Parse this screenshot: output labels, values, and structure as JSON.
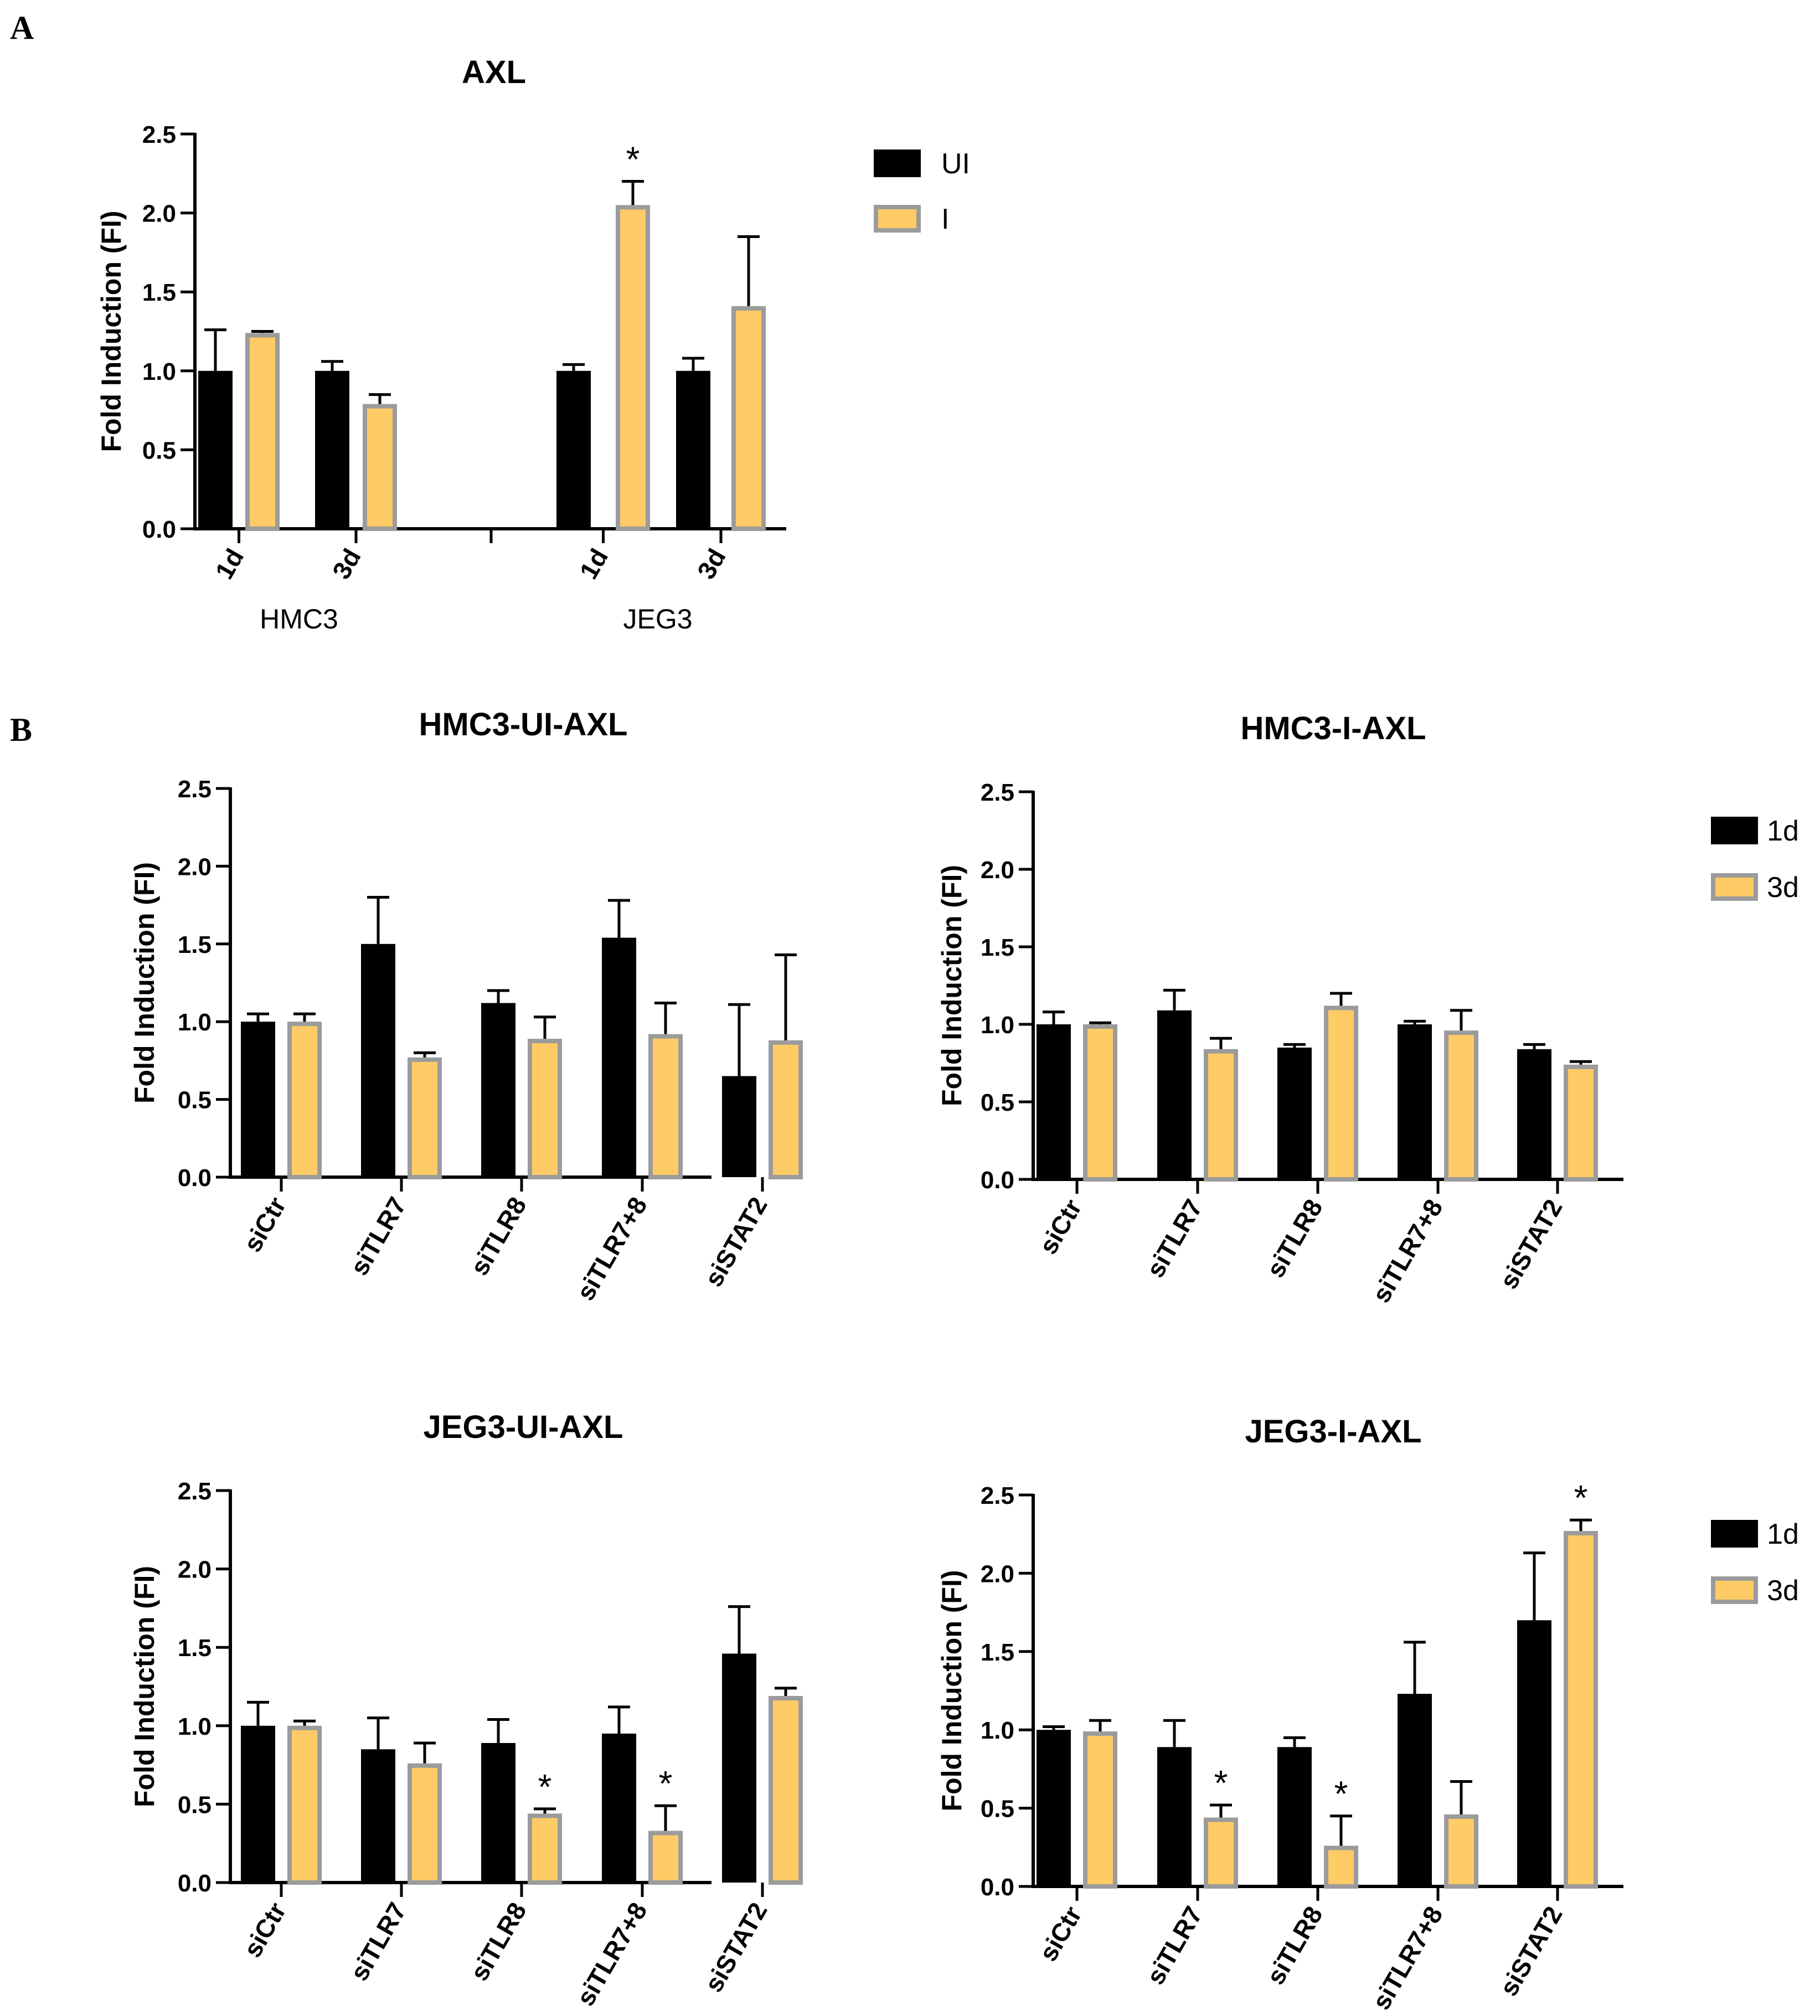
{
  "panels": {
    "a": "A",
    "b": "B"
  },
  "colors": {
    "ui": "#000000",
    "i": "#FFCB66",
    "i_border": "#9B9B9B",
    "axis": "#000000"
  },
  "chart_data": [
    {
      "id": "axl",
      "type": "bar",
      "title": "AXL",
      "ylabel": "Fold Induction (FI)",
      "ylim": [
        0,
        2.5
      ],
      "yticks": [
        "0.0",
        "0.5",
        "1.0",
        "1.5",
        "2.0",
        "2.5"
      ],
      "groups": [
        "HMC3",
        "JEG3"
      ],
      "categories": [
        "1d",
        "3d",
        "1d",
        "3d"
      ],
      "legend": [
        "UI",
        "I"
      ],
      "series": [
        {
          "name": "UI",
          "values": [
            1.0,
            1.0,
            1.0,
            1.0
          ],
          "errors": [
            0.26,
            0.06,
            0.04,
            0.08
          ]
        },
        {
          "name": "I",
          "values": [
            1.24,
            0.79,
            2.05,
            1.41
          ],
          "errors": [
            0.01,
            0.06,
            0.15,
            0.44
          ]
        }
      ],
      "annotations": [
        {
          "text": "*",
          "category": 2,
          "series": 1
        }
      ]
    },
    {
      "id": "hmc3_ui",
      "type": "bar",
      "title": "HMC3-UI-AXL",
      "ylabel": "Fold Induction (FI)",
      "ylim": [
        0,
        2.5
      ],
      "yticks": [
        "0.0",
        "0.5",
        "1.0",
        "1.5",
        "2.0",
        "2.5"
      ],
      "categories": [
        "siCtr",
        "siTLR7",
        "siTLR8",
        "siTLR7+8",
        "siSTAT2"
      ],
      "series": [
        {
          "name": "1d",
          "values": [
            1.0,
            1.5,
            1.12,
            1.54,
            0.65
          ],
          "errors": [
            0.05,
            0.3,
            0.08,
            0.24,
            0.46
          ]
        },
        {
          "name": "3d",
          "values": [
            1.0,
            0.77,
            0.89,
            0.92,
            0.88
          ],
          "errors": [
            0.05,
            0.03,
            0.14,
            0.2,
            0.55
          ]
        }
      ],
      "annotations": []
    },
    {
      "id": "hmc3_i",
      "type": "bar",
      "title": "HMC3-I-AXL",
      "ylabel": "Fold Induction (FI)",
      "ylim": [
        0,
        2.5
      ],
      "yticks": [
        "0.0",
        "0.5",
        "1.0",
        "1.5",
        "2.0",
        "2.5"
      ],
      "categories": [
        "siCtr",
        "siTLR7",
        "siTLR8",
        "siTLR7+8",
        "siSTAT2"
      ],
      "legend": [
        "1d",
        "3d"
      ],
      "series": [
        {
          "name": "1d",
          "values": [
            1.0,
            1.09,
            0.85,
            1.0,
            0.84
          ],
          "errors": [
            0.08,
            0.13,
            0.02,
            0.02,
            0.03
          ]
        },
        {
          "name": "3d",
          "values": [
            1.0,
            0.84,
            1.12,
            0.96,
            0.74
          ],
          "errors": [
            0.01,
            0.07,
            0.08,
            0.13,
            0.02
          ]
        }
      ],
      "annotations": []
    },
    {
      "id": "jeg3_ui",
      "type": "bar",
      "title": "JEG3-UI-AXL",
      "ylabel": "Fold Induction (FI)",
      "ylim": [
        0,
        2.5
      ],
      "yticks": [
        "0.0",
        "0.5",
        "1.0",
        "1.5",
        "2.0",
        "2.5"
      ],
      "categories": [
        "siCtr",
        "siTLR7",
        "siTLR8",
        "siTLR7+8",
        "siSTAT2"
      ],
      "series": [
        {
          "name": "1d",
          "values": [
            1.0,
            0.85,
            0.89,
            0.95,
            1.46
          ],
          "errors": [
            0.15,
            0.2,
            0.15,
            0.17,
            0.3
          ]
        },
        {
          "name": "3d",
          "values": [
            1.0,
            0.76,
            0.44,
            0.33,
            1.19
          ],
          "errors": [
            0.03,
            0.13,
            0.03,
            0.16,
            0.05
          ]
        }
      ],
      "annotations": [
        {
          "text": "*",
          "category": 2,
          "series": 1
        },
        {
          "text": "*",
          "category": 3,
          "series": 1
        }
      ]
    },
    {
      "id": "jeg3_i",
      "type": "bar",
      "title": "JEG3-I-AXL",
      "ylabel": "Fold Induction (FI)",
      "ylim": [
        0,
        2.5
      ],
      "yticks": [
        "0.0",
        "0.5",
        "1.0",
        "1.5",
        "2.0",
        "2.5"
      ],
      "categories": [
        "siCtr",
        "siTLR7",
        "siTLR8",
        "siTLR7+8",
        "siSTAT2"
      ],
      "legend": [
        "1d",
        "3d"
      ],
      "series": [
        {
          "name": "1d",
          "values": [
            1.0,
            0.89,
            0.89,
            1.23,
            1.7
          ],
          "errors": [
            0.02,
            0.17,
            0.06,
            0.33,
            0.43
          ]
        },
        {
          "name": "3d",
          "values": [
            0.99,
            0.44,
            0.26,
            0.46,
            2.27
          ],
          "errors": [
            0.07,
            0.08,
            0.19,
            0.21,
            0.07
          ]
        }
      ],
      "annotations": [
        {
          "text": "*",
          "category": 1,
          "series": 1
        },
        {
          "text": "*",
          "category": 2,
          "series": 1
        },
        {
          "text": "*",
          "category": 4,
          "series": 1
        }
      ]
    }
  ]
}
